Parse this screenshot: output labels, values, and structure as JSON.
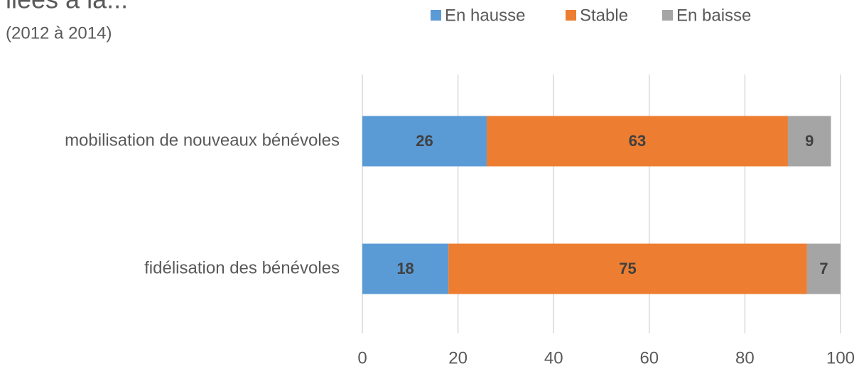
{
  "chart_data": {
    "type": "stacked_bar_horizontal",
    "title": "liées à la...",
    "subtitle": "(2012 à 2014)",
    "categories": [
      "mobilisation de nouveaux bénévoles",
      "fidélisation des bénévoles"
    ],
    "series": [
      {
        "name": "En hausse",
        "color": "#5b9bd5",
        "values": [
          26,
          18
        ]
      },
      {
        "name": "Stable",
        "color": "#ed7d31",
        "values": [
          63,
          75
        ]
      },
      {
        "name": "En baisse",
        "color": "#a5a5a5",
        "values": [
          9,
          7
        ]
      }
    ],
    "xlim": [
      0,
      100
    ],
    "xticks": [
      0,
      20,
      40,
      60,
      80,
      100
    ],
    "grid": true,
    "legend": "top"
  }
}
